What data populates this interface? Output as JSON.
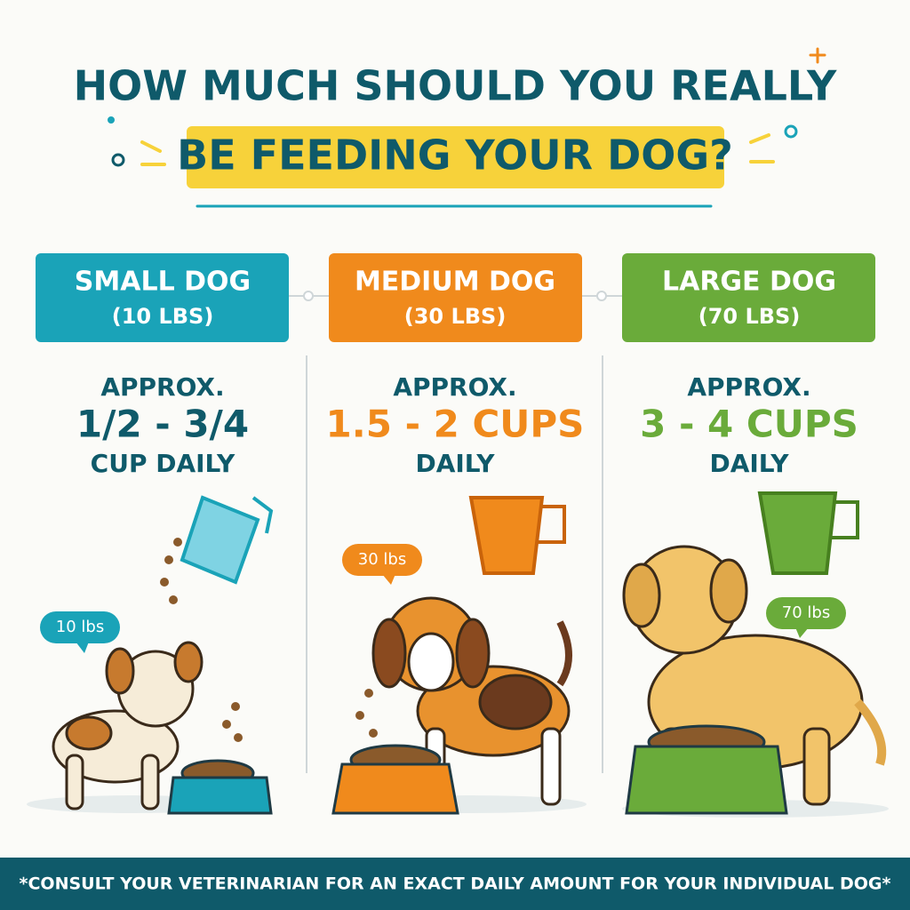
{
  "header": {
    "title_line1": "HOW MUCH SHOULD YOU REALLY",
    "title_line2": "BE FEEDING YOUR DOG?"
  },
  "columns": [
    {
      "label": "SMALL DOG",
      "weight": "(10 LBS)",
      "approx": "APPROX.",
      "amount": "1/2 - 3/4",
      "unit": "CUP DAILY",
      "bubble": "10 lbs"
    },
    {
      "label": "MEDIUM DOG",
      "weight": "(30 LBS)",
      "approx": "APPROX.",
      "amount": "1.5 - 2 CUPS",
      "unit": "DAILY",
      "bubble": "30 lbs"
    },
    {
      "label": "LARGE DOG",
      "weight": "(70 LBS)",
      "approx": "APPROX.",
      "amount": "3 - 4 CUPS",
      "unit": "DAILY",
      "bubble": "70 lbs"
    }
  ],
  "footer": {
    "note": "*CONSULT YOUR VETERINARIAN FOR AN EXACT DAILY AMOUNT FOR YOUR INDIVIDUAL DOG*"
  }
}
